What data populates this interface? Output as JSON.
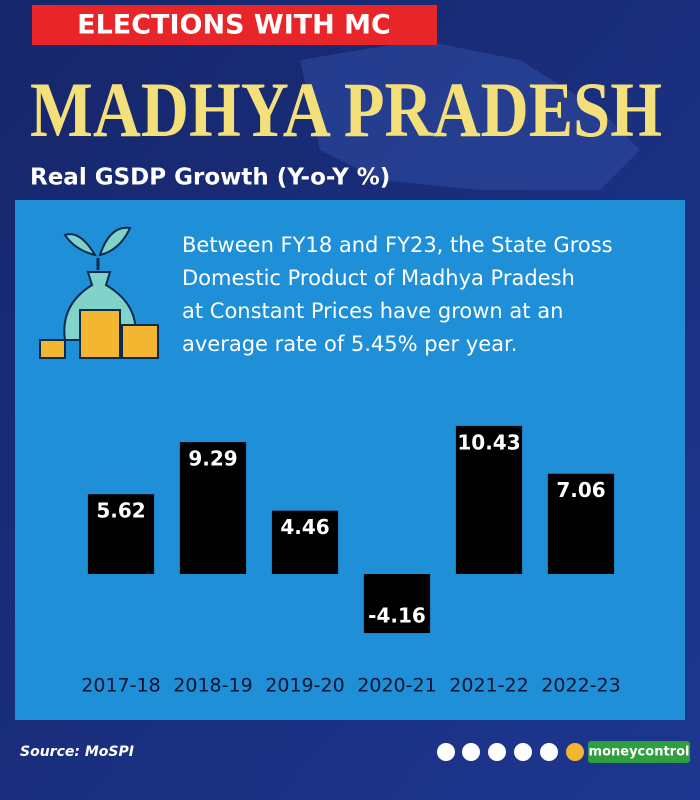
{
  "header": {
    "banner": "ELECTIONS WITH MC",
    "title": "MADHYA PRADESH",
    "subtitle": "Real GSDP Growth (Y-o-Y %)"
  },
  "description": [
    "Between FY18 and FY23, the State Gross",
    "Domestic Product of Madhya Pradesh",
    "at Constant Prices have grown at an",
    "average rate of 5.45% per year."
  ],
  "chart_data": {
    "type": "bar",
    "categories": [
      "2017-18",
      "2018-19",
      "2019-20",
      "2020-21",
      "2021-22",
      "2022-23"
    ],
    "values": [
      5.62,
      9.29,
      4.46,
      -4.16,
      10.43,
      7.06
    ],
    "color": "#000000",
    "ylim": [
      -5,
      13
    ]
  },
  "footer": {
    "source": "Source: MoSPI",
    "brand": "moneycontrol"
  }
}
